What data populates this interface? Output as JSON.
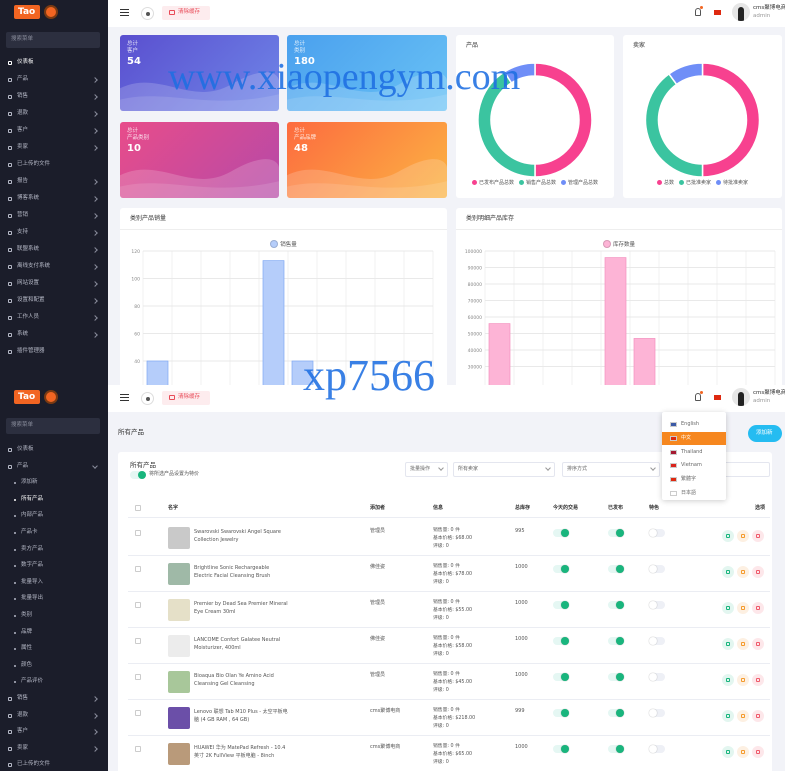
{
  "top": {
    "logo": "Tao",
    "search": "搜索菜单",
    "menu": [
      {
        "label": "仪表板",
        "active": true
      },
      {
        "label": "产品",
        "arrow": true
      },
      {
        "label": "销售",
        "arrow": true
      },
      {
        "label": "退款",
        "arrow": true
      },
      {
        "label": "客户",
        "arrow": true
      },
      {
        "label": "卖家",
        "arrow": true
      },
      {
        "label": "已上传的文件"
      },
      {
        "label": "报告",
        "arrow": true
      },
      {
        "label": "博客系统",
        "arrow": true
      },
      {
        "label": "营销",
        "arrow": true
      },
      {
        "label": "支持",
        "arrow": true
      },
      {
        "label": "联盟系统",
        "arrow": true
      },
      {
        "label": "离线支付系统",
        "arrow": true
      },
      {
        "label": "网站设置",
        "arrow": true
      },
      {
        "label": "设置和配置",
        "arrow": true
      },
      {
        "label": "工作人员",
        "arrow": true
      },
      {
        "label": "系统",
        "arrow": true
      },
      {
        "label": "插件管理器"
      }
    ],
    "header": {
      "clear_cache": "清除缓存",
      "user_name": "cms聚博电商",
      "user_role": "admin"
    },
    "stats": [
      {
        "line1": "总计",
        "line2": "客户",
        "value": 54
      },
      {
        "line1": "总计",
        "line2": "类别",
        "value": 180
      },
      {
        "line1": "总计",
        "line2": "产品类别",
        "value": 10
      },
      {
        "line1": "总计",
        "line2": "产品品牌",
        "value": 48
      }
    ]
  },
  "chart_data": [
    {
      "type": "donut",
      "title": "产品",
      "categories": [
        "已发布产品总数",
        "销售产品总数",
        "管理产品总数"
      ],
      "values": [
        50,
        41,
        9
      ],
      "colors": [
        "#f7418f",
        "#3bc4a0",
        "#6f8ef7"
      ]
    },
    {
      "type": "donut",
      "title": "卖家",
      "categories": [
        "总数",
        "已批准卖家",
        "待批准卖家"
      ],
      "values": [
        50,
        40,
        10
      ],
      "colors": [
        "#f7418f",
        "#3bc4a0",
        "#6f8ef7"
      ]
    },
    {
      "type": "bar",
      "title": "类别产品销量",
      "categories": [
        null,
        null,
        null,
        null,
        null,
        null,
        null,
        null,
        null,
        null
      ],
      "series": [
        {
          "name": "销售量",
          "color": "#b5cdfa",
          "values": [
            40,
            0,
            0,
            0,
            113,
            40,
            0,
            0,
            0,
            0
          ]
        }
      ],
      "ylim": [
        0,
        120
      ],
      "yticks": [
        40,
        60,
        80,
        100,
        120
      ],
      "grid": true
    },
    {
      "type": "bar",
      "title": "类别明细产品库存",
      "categories": [
        null,
        null,
        null,
        null,
        null,
        null,
        null,
        null,
        null,
        null
      ],
      "series": [
        {
          "name": "库存数量",
          "color": "#fdb4d6",
          "values": [
            56000,
            0,
            0,
            0,
            96000,
            47000,
            0,
            0,
            0,
            0
          ]
        }
      ],
      "ylim": [
        0,
        100000
      ],
      "yticks": [
        30000,
        40000,
        50000,
        60000,
        70000,
        80000,
        90000,
        100000
      ],
      "grid": true
    }
  ],
  "watermarks": [
    "www.xiaopengym.com",
    "xp7566"
  ],
  "bottom": {
    "logo": "Tao",
    "search": "搜索菜单",
    "menu": [
      {
        "label": "仪表板"
      },
      {
        "label": "产品",
        "expanded": true
      },
      {
        "label": "添加新",
        "sub": true
      },
      {
        "label": "所有产品",
        "sub": true,
        "active": true
      },
      {
        "label": "内部产品",
        "sub": true
      },
      {
        "label": "产品卡",
        "sub": true
      },
      {
        "label": "卖方产品",
        "sub": true
      },
      {
        "label": "数字产品",
        "sub": true
      },
      {
        "label": "批量导入",
        "sub": true
      },
      {
        "label": "批量导出",
        "sub": true
      },
      {
        "label": "类别",
        "sub": true
      },
      {
        "label": "品牌",
        "sub": true
      },
      {
        "label": "属性",
        "sub": true
      },
      {
        "label": "颜色",
        "sub": true
      },
      {
        "label": "产品评价",
        "sub": true
      },
      {
        "label": "销售",
        "arrow": true
      },
      {
        "label": "退款",
        "arrow": true
      },
      {
        "label": "客户",
        "arrow": true
      },
      {
        "label": "卖家",
        "arrow": true
      },
      {
        "label": "已上传的文件"
      }
    ],
    "header": {
      "clear_cache": "清除缓存",
      "user_name": "cms聚博电商",
      "user_role": "admin"
    },
    "page_title": "所有产品",
    "add_button": "添加新",
    "card_title": "所有产品",
    "toggle_label": "将所选产品设置为特价",
    "filters": {
      "bulk": "批量操作",
      "seller": "所有卖家",
      "sort": "排序方式"
    },
    "languages": {
      "items": [
        "English",
        "中文",
        "Thailand",
        "Vietnam",
        "繁體字",
        "日本語"
      ],
      "selected": 1
    },
    "table": {
      "columns": [
        "名字",
        "添加者",
        "信息",
        "总库存",
        "今天的交易",
        "已发布",
        "特色",
        "选项"
      ],
      "rows": [
        {
          "name": "Swarovski Swarovski Angel Square Collection Jewelry",
          "added_by": "管理员",
          "info": [
            "销售量: 0 件",
            "基本价格: $68.00",
            "评级: 0"
          ],
          "stock": 995,
          "todays_deal": true,
          "published": true,
          "featured": false
        },
        {
          "name": "Brightline Sonic Rechargeable Electric Facial Cleansing Brush System Facia...",
          "added_by": "佛佳姿",
          "info": [
            "销售量: 0 件",
            "基本价格: $78.00",
            "评级: 0"
          ],
          "stock": 1000,
          "todays_deal": true,
          "published": true,
          "featured": false
        },
        {
          "name": "Premier by Dead Sea Premier Mineral Eye Cream 30ml",
          "added_by": "管理员",
          "info": [
            "销售量: 0 件",
            "基本价格: $55.00",
            "评级: 0"
          ],
          "stock": 1000,
          "todays_deal": true,
          "published": true,
          "featured": false
        },
        {
          "name": "LANCOME Confort Galatee Neutral Moisturizer, 400ml",
          "added_by": "佛佳姿",
          "info": [
            "销售量: 0 件",
            "基本价格: $58.00",
            "评级: 0"
          ],
          "stock": 1000,
          "todays_deal": true,
          "published": true,
          "featured": false
        },
        {
          "name": "Bioaqua Bio Olan Ye Amino Acid Cleansing Gel Cleansing Moisturizing...",
          "added_by": "管理员",
          "info": [
            "销售量: 0 件",
            "基本价格: $45.00",
            "评级: 0"
          ],
          "stock": 1000,
          "todays_deal": true,
          "published": true,
          "featured": false
        },
        {
          "name": "Lenovo 联想 Tab M10 Plus - 太空平板电脑 (4 GB RAM , 64 GB)",
          "added_by": "cms聚博电商",
          "info": [
            "销售量: 0 件",
            "基本价格: $218.00",
            "评级: 0"
          ],
          "stock": 999,
          "todays_deal": true,
          "published": true,
          "featured": false
        },
        {
          "name": "HUAWEI 华为 MatePad Refresh - 10.4 英寸 2K FullView 平板电脑 - 8inch 800,4 GB...",
          "added_by": "cms聚博电商",
          "info": [
            "销售量: 0 件",
            "基本价格: $65.00",
            "评级: 0"
          ],
          "stock": 1000,
          "todays_deal": true,
          "published": true,
          "featured": false
        }
      ]
    }
  }
}
